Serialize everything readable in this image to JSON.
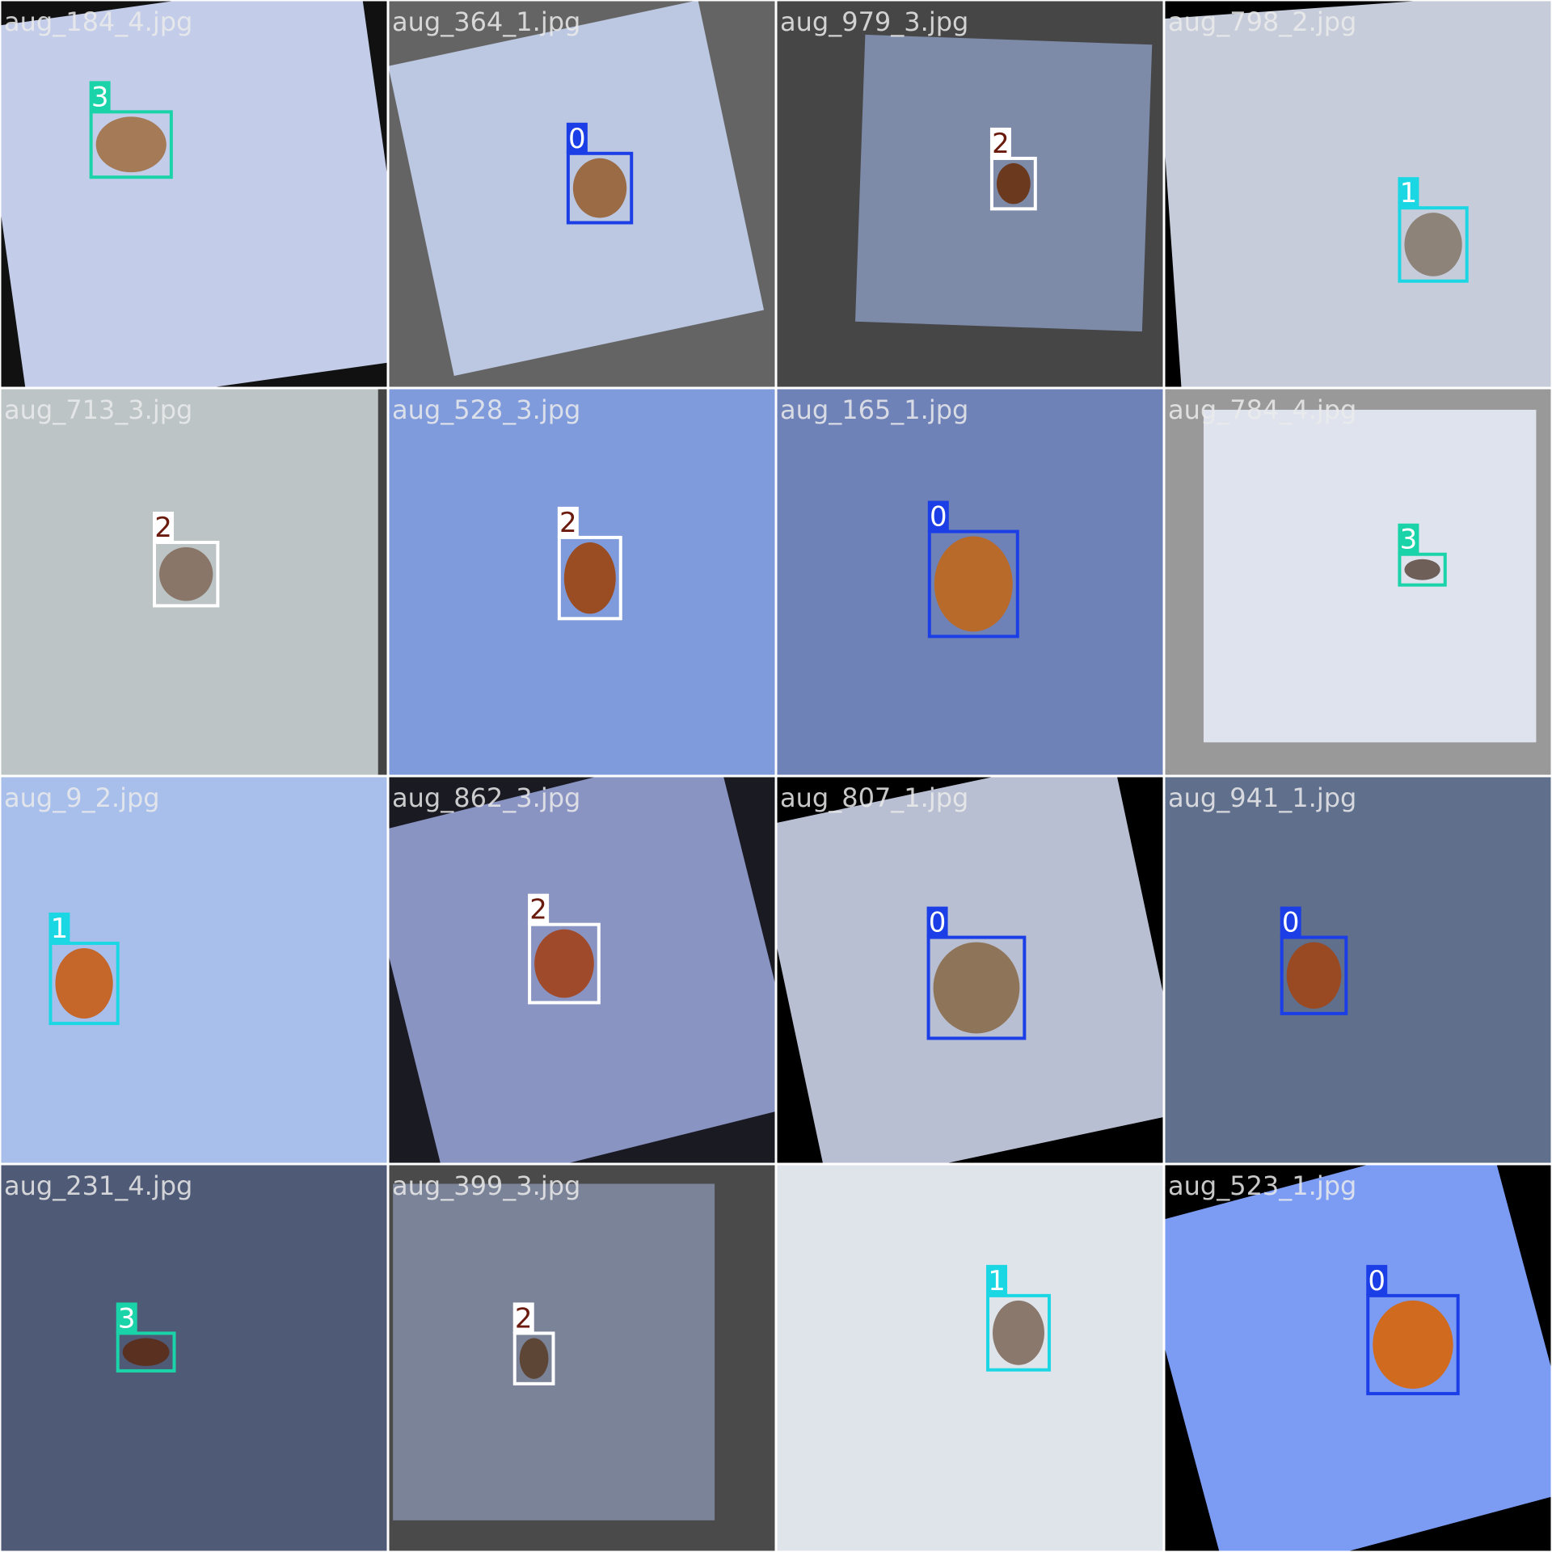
{
  "tiles": [
    {
      "filename": "aug_184_4.jpg",
      "label": "3"
    },
    {
      "filename": "aug_364_1.jpg",
      "label": "0"
    },
    {
      "filename": "aug_979_3.jpg",
      "label": "2"
    },
    {
      "filename": "aug_798_2.jpg",
      "label": "1"
    },
    {
      "filename": "aug_713_3.jpg",
      "label": "2"
    },
    {
      "filename": "aug_528_3.jpg",
      "label": "2"
    },
    {
      "filename": "aug_165_1.jpg",
      "label": "0"
    },
    {
      "filename": "aug_784_4.jpg",
      "label": "3"
    },
    {
      "filename": "aug_9_2.jpg",
      "label": "1"
    },
    {
      "filename": "aug_862_3.jpg",
      "label": "2"
    },
    {
      "filename": "aug_807_1.jpg",
      "label": "0"
    },
    {
      "filename": "aug_941_1.jpg",
      "label": "0"
    },
    {
      "filename": "aug_231_4.jpg",
      "label": "3"
    },
    {
      "filename": "aug_399_3.jpg",
      "label": "2"
    },
    {
      "label": "1"
    },
    {
      "filename": "aug_523_1.jpg",
      "label": "0"
    }
  ]
}
